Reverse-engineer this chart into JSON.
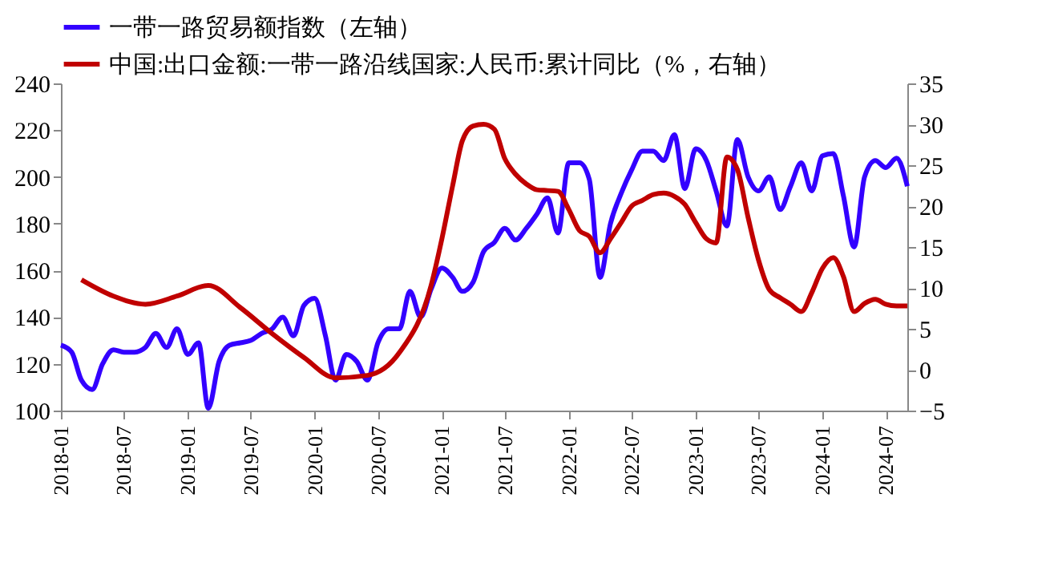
{
  "chart_data": {
    "type": "line",
    "legend": "top left",
    "grid": false,
    "line_style": "solid",
    "marker": "none",
    "xlim": [
      "2018-01",
      "2024-09"
    ],
    "xticks": [
      "2018-01",
      "2018-07",
      "2019-01",
      "2019-07",
      "2020-01",
      "2020-07",
      "2021-01",
      "2021-07",
      "2022-01",
      "2022-07",
      "2023-01",
      "2023-07",
      "2024-01",
      "2024-07"
    ],
    "ylim": [
      100,
      240
    ],
    "yticks": [
      100,
      120,
      140,
      160,
      180,
      200,
      220,
      240
    ],
    "y2lim": [
      -5,
      35
    ],
    "y2ticks": [
      -5,
      0,
      5,
      10,
      15,
      20,
      25,
      30,
      35
    ],
    "x": [
      "2018-01",
      "2018-02",
      "2018-03",
      "2018-04",
      "2018-05",
      "2018-06",
      "2018-07",
      "2018-08",
      "2018-09",
      "2018-10",
      "2018-11",
      "2018-12",
      "2019-01",
      "2019-02",
      "2019-03",
      "2019-04",
      "2019-05",
      "2019-06",
      "2019-07",
      "2019-08",
      "2019-09",
      "2019-10",
      "2019-11",
      "2019-12",
      "2020-01",
      "2020-02",
      "2020-03",
      "2020-04",
      "2020-05",
      "2020-06",
      "2020-07",
      "2020-08",
      "2020-09",
      "2020-10",
      "2020-11",
      "2020-12",
      "2021-01",
      "2021-02",
      "2021-03",
      "2021-04",
      "2021-05",
      "2021-06",
      "2021-07",
      "2021-08",
      "2021-09",
      "2021-10",
      "2021-11",
      "2021-12",
      "2022-01",
      "2022-02",
      "2022-03",
      "2022-04",
      "2022-05",
      "2022-06",
      "2022-07",
      "2022-08",
      "2022-09",
      "2022-10",
      "2022-11",
      "2022-12",
      "2023-01",
      "2023-02",
      "2023-03",
      "2023-04",
      "2023-05",
      "2023-06",
      "2023-07",
      "2023-08",
      "2023-09",
      "2023-10",
      "2023-11",
      "2023-12",
      "2024-01",
      "2024-02",
      "2024-03",
      "2024-04",
      "2024-05",
      "2024-06",
      "2024-07",
      "2024-08",
      "2024-09"
    ],
    "series": [
      {
        "name": "一带一路贸易额指数（左轴）",
        "color": "#3300ff",
        "values": [
          128,
          125,
          113,
          109,
          120,
          126,
          125,
          125,
          127,
          133,
          127,
          135,
          124,
          129,
          101,
          121,
          128,
          129,
          130,
          133,
          135,
          140,
          132,
          145,
          148,
          132,
          113,
          124,
          121,
          113,
          129,
          135,
          135,
          151,
          140,
          152,
          161,
          157,
          151,
          155,
          168,
          172,
          178,
          173,
          178,
          184,
          191,
          176,
          206,
          206,
          199,
          157,
          180,
          193,
          203,
          211,
          211,
          207,
          218,
          195,
          212,
          207,
          194,
          179,
          216,
          200,
          194,
          200,
          186,
          196,
          206,
          194,
          209,
          210,
          192,
          170,
          200,
          207,
          204,
          208,
          196
        ]
      },
      {
        "name": "中国:出口金额:一带一路沿线国家:人民币:累计同比（%，右轴）",
        "color": "#c00000",
        "axis": "y2",
        "x": [
          "2018-03",
          "2018-06",
          "2018-09",
          "2018-12",
          "2019-03",
          "2019-06",
          "2019-09",
          "2019-12",
          "2020-03",
          "2020-06",
          "2020-09",
          "2020-12",
          "2021-01",
          "2021-02",
          "2021-03",
          "2021-04",
          "2021-05",
          "2021-06",
          "2021-07",
          "2021-08",
          "2021-09",
          "2021-10",
          "2021-11",
          "2021-12",
          "2022-01",
          "2022-02",
          "2022-03",
          "2022-04",
          "2022-05",
          "2022-06",
          "2022-07",
          "2022-08",
          "2022-09",
          "2022-10",
          "2022-11",
          "2022-12",
          "2023-01",
          "2023-02",
          "2023-03",
          "2023-04",
          "2023-05",
          "2023-06",
          "2023-07",
          "2023-08",
          "2023-09",
          "2023-10",
          "2023-11",
          "2023-12",
          "2024-01",
          "2024-02",
          "2024-03",
          "2024-04",
          "2024-05",
          "2024-06",
          "2024-07",
          "2024-08",
          "2024-09"
        ],
        "values": [
          11,
          9,
          8,
          9,
          10.3,
          7.6,
          4.4,
          1.5,
          -1,
          -0.7,
          2.1,
          10.3,
          16,
          22.5,
          28,
          29.8,
          30,
          29.4,
          25.8,
          23.9,
          22.7,
          22,
          21.9,
          21.8,
          19.6,
          17,
          16.3,
          14.3,
          16,
          18,
          20,
          20.7,
          21.4,
          21.6,
          21.2,
          20.2,
          18,
          16,
          15.5,
          26,
          24.5,
          18.6,
          13.4,
          9.8,
          8.8,
          8,
          7.1,
          9.4,
          12.4,
          13.7,
          11.4,
          7.1,
          8.1,
          8.6,
          8,
          7.8,
          7.8
        ]
      }
    ]
  }
}
